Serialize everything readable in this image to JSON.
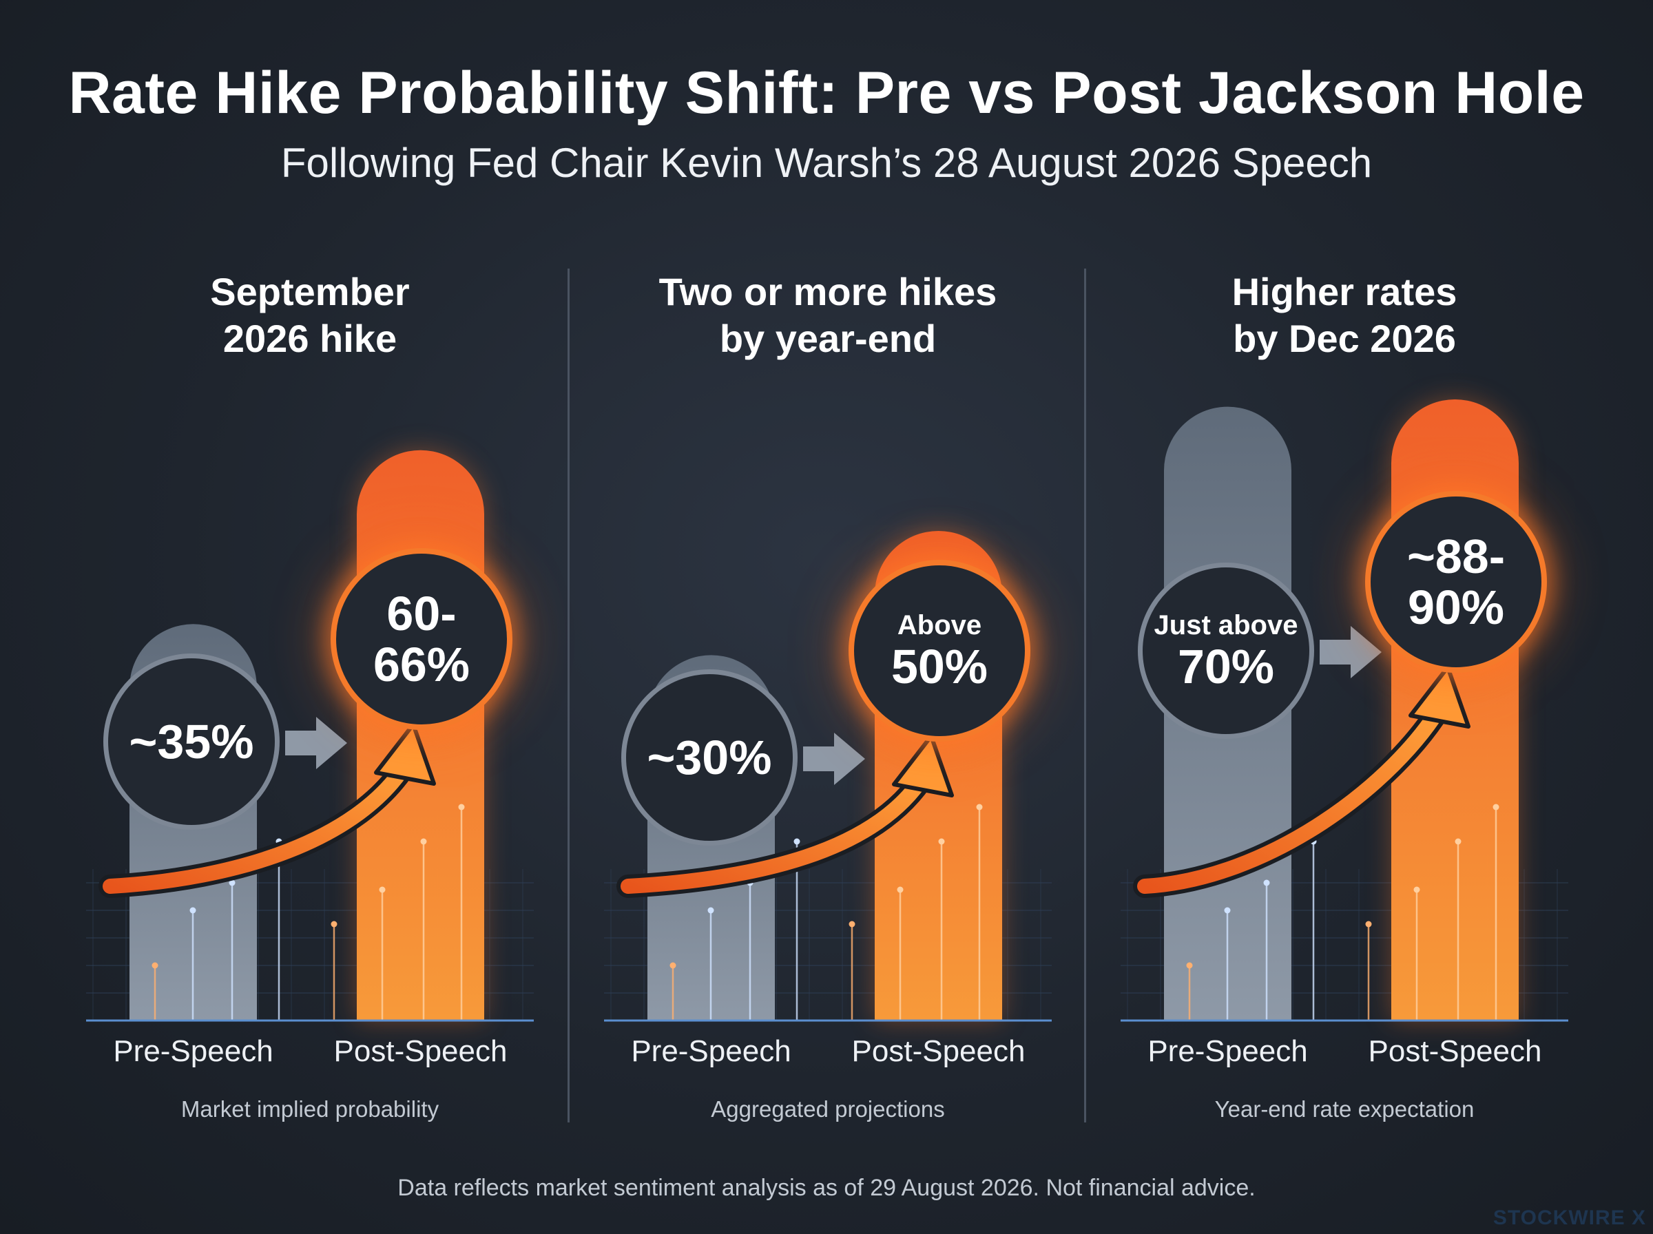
{
  "title": "Rate Hike Probability Shift: Pre vs Post Jackson Hole",
  "subtitle": "Following Fed Chair Kevin Warsh’s 28 August 2026 Speech",
  "footer": "Data reflects market sentiment analysis as of 29 August 2026. Not financial advice.",
  "brand": "STOCKWIRE X",
  "colors": {
    "pre": "#8b95a3",
    "post": "#f26f22",
    "accent_glow": "#ff8a2f",
    "background": "#1f252e"
  },
  "chart_data": [
    {
      "type": "bar",
      "title_lines": [
        "September",
        "2026 hike"
      ],
      "categories": [
        "Pre-Speech",
        "Post-Speech"
      ],
      "pre_label": {
        "small": "",
        "big": "~35%"
      },
      "post_label": {
        "small": "",
        "big_lines": [
          "60-",
          "66%"
        ]
      },
      "values": [
        35,
        63
      ],
      "caption": "Market implied probability"
    },
    {
      "type": "bar",
      "title_lines": [
        "Two or more hikes",
        "by year-end"
      ],
      "categories": [
        "Pre-Speech",
        "Post-Speech"
      ],
      "pre_label": {
        "small": "",
        "big": "~30%"
      },
      "post_label": {
        "small": "Above",
        "big_lines": [
          "50%"
        ]
      },
      "values": [
        30,
        50
      ],
      "caption": "Aggregated projections"
    },
    {
      "type": "bar",
      "title_lines": [
        "Higher rates",
        "by Dec 2026"
      ],
      "categories": [
        "Pre-Speech",
        "Post-Speech"
      ],
      "pre_label": {
        "small": "Just above",
        "big": "70%"
      },
      "post_label": {
        "small": "",
        "big_lines": [
          "~88-",
          "90%"
        ]
      },
      "values": [
        70,
        89
      ],
      "caption": "Year-end rate expectation"
    }
  ]
}
